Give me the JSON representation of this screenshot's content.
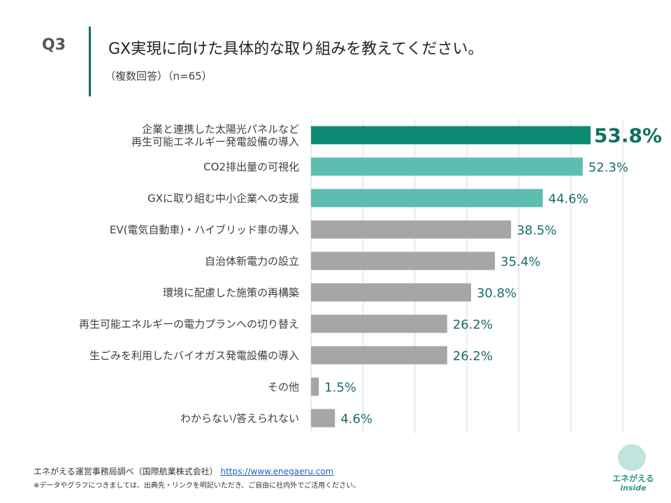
{
  "question": "Q3",
  "chart_data": {
    "type": "hbar",
    "title": "GX実現に向けた具体的な取り組みを教えてください。",
    "subtitle": "（複数回答）（n=65）",
    "categories": [
      "企業と連携した太陽光パネルなど\n再生可能エネルギー発電設備の導入",
      "CO2排出量の可視化",
      "GXに取り組む中小企業への支援",
      "EV(電気自動車)・ハイブリッド車の導入",
      "自治体新電力の設立",
      "環境に配慮した施策の再構築",
      "再生可能エネルギーの電力プランへの切り替え",
      "生ごみを利用したバイオガス発電設備の導入",
      "その他",
      "わからない/答えられない"
    ],
    "values": [
      53.8,
      52.3,
      44.6,
      38.5,
      35.4,
      30.8,
      26.2,
      26.2,
      1.5,
      4.6
    ],
    "value_labels": [
      "53.8%",
      "52.3%",
      "44.6%",
      "38.5%",
      "35.4%",
      "30.8%",
      "26.2%",
      "26.2%",
      "1.5%",
      "4.6%"
    ],
    "colors": [
      "#0f8a74",
      "#5dbdb0",
      "#5dbdb0",
      "#a6a6a6",
      "#a6a6a6",
      "#a6a6a6",
      "#a6a6a6",
      "#a6a6a6",
      "#a6a6a6",
      "#a6a6a6"
    ],
    "xlim": [
      0,
      60
    ],
    "xticks": [
      0,
      10,
      20,
      30,
      40,
      50,
      60
    ],
    "grid": true
  },
  "footer": {
    "source": "エネがえる運営事務局調べ（国際航業株式会社）",
    "link": "https://www.enegaeru.com",
    "note": "※データやグラフにつきましては、出典先・リンクを明記いただき、ご自由に社内外でご活用ください。"
  },
  "logo": {
    "name": "エネがえる",
    "tagline": "inside"
  }
}
